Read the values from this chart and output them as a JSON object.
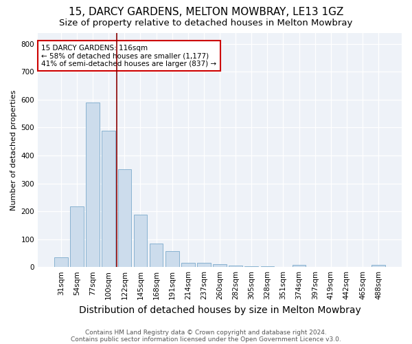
{
  "title1": "15, DARCY GARDENS, MELTON MOWBRAY, LE13 1GZ",
  "title2": "Size of property relative to detached houses in Melton Mowbray",
  "xlabel": "Distribution of detached houses by size in Melton Mowbray",
  "ylabel": "Number of detached properties",
  "categories": [
    "31sqm",
    "54sqm",
    "77sqm",
    "100sqm",
    "122sqm",
    "145sqm",
    "168sqm",
    "191sqm",
    "214sqm",
    "237sqm",
    "260sqm",
    "282sqm",
    "305sqm",
    "328sqm",
    "351sqm",
    "374sqm",
    "397sqm",
    "419sqm",
    "442sqm",
    "465sqm",
    "488sqm"
  ],
  "values": [
    35,
    218,
    590,
    488,
    350,
    188,
    85,
    57,
    15,
    15,
    10,
    5,
    3,
    2,
    1,
    8,
    1,
    0,
    0,
    0,
    8
  ],
  "bar_color": "#ccdcec",
  "bar_edge_color": "#7aaacb",
  "red_line_index": 4,
  "line_color": "#8b0000",
  "annotation_text": "15 DARCY GARDENS: 116sqm\n← 58% of detached houses are smaller (1,177)\n41% of semi-detached houses are larger (837) →",
  "annotation_box_color": "white",
  "annotation_box_edge": "#cc0000",
  "ylim": [
    0,
    840
  ],
  "yticks": [
    0,
    100,
    200,
    300,
    400,
    500,
    600,
    700,
    800
  ],
  "footer1": "Contains HM Land Registry data © Crown copyright and database right 2024.",
  "footer2": "Contains public sector information licensed under the Open Government Licence v3.0.",
  "background_color": "#eef2f8",
  "title1_fontsize": 11,
  "title2_fontsize": 9.5,
  "xlabel_fontsize": 10,
  "ylabel_fontsize": 8,
  "tick_fontsize": 7.5,
  "footer_fontsize": 6.5
}
